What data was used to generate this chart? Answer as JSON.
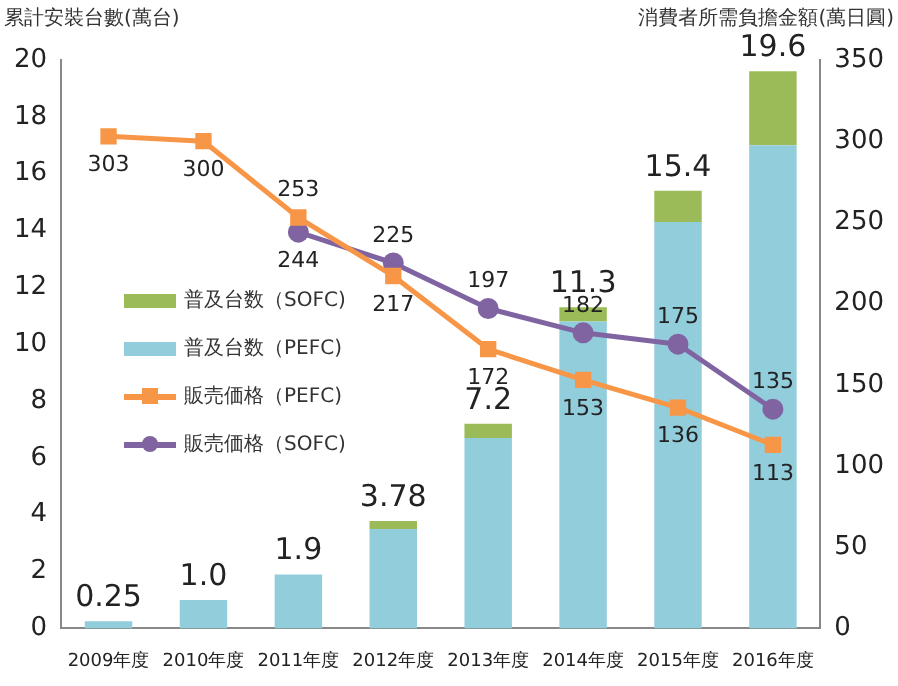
{
  "chart_data": {
    "type": "bar",
    "stacked": true,
    "ylabel": "累計安裝台數(萬台)",
    "y2label": "消費者所需負擔金額(萬日圓)",
    "categories": [
      "2009年度",
      "2010年度",
      "2011年度",
      "2012年度",
      "2013年度",
      "2014年度",
      "2015年度",
      "2016年度"
    ],
    "series": [
      {
        "name": "普及台数（PEFC)",
        "color": "#92cddc",
        "values": [
          0.25,
          1.0,
          1.9,
          3.5,
          6.7,
          10.8,
          14.3,
          17.0
        ]
      },
      {
        "name": "普及台数（SOFC)",
        "color": "#9bbb59",
        "values": [
          0,
          0,
          0,
          0.28,
          0.5,
          0.5,
          1.1,
          2.6
        ]
      },
      {
        "name": "販売価格（PEFC)",
        "type": "line",
        "axis": "y2",
        "color": "#f79646",
        "marker": "square",
        "values": [
          303,
          300,
          253,
          217,
          172,
          153,
          136,
          113
        ],
        "value_labels": [
          "303",
          "300",
          "253",
          "217",
          "172",
          "153",
          "136",
          "113"
        ]
      },
      {
        "name": "販売価格（SOFC)",
        "type": "line",
        "axis": "y2",
        "color": "#8064a2",
        "marker": "circle",
        "values": [
          null,
          null,
          244,
          225,
          197,
          182,
          175,
          135
        ],
        "value_labels": [
          null,
          null,
          "244",
          "225",
          "197",
          "182",
          "175",
          "135"
        ]
      }
    ],
    "totals": [
      "0.25",
      "1.0",
      "1.9",
      "3.78",
      "7.2",
      "11.3",
      "15.4",
      "19.6"
    ],
    "ylim": [
      0,
      20
    ],
    "yticks": [
      0,
      2,
      4,
      6,
      8,
      10,
      12,
      14,
      16,
      18,
      20
    ],
    "y2lim": [
      0,
      350
    ],
    "y2ticks": [
      0,
      50,
      100,
      150,
      200,
      250,
      300,
      350
    ],
    "grid": false,
    "legend": "left"
  }
}
